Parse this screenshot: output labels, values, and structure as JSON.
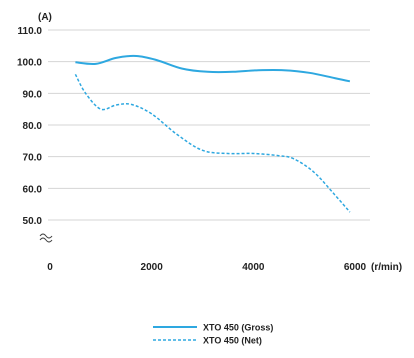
{
  "chart_data": {
    "type": "line",
    "title": "",
    "ylabel": "(A)",
    "xlabel": "(r/min)",
    "xlim": [
      0,
      6000
    ],
    "ylim": [
      50,
      110
    ],
    "axis_break": true,
    "grid": "horizontal",
    "y_ticks": [
      "110.0",
      "100.0",
      "90.0",
      "80.0",
      "70.0",
      "60.0",
      "50.0"
    ],
    "y_tick_values": [
      110,
      100,
      90,
      80,
      70,
      60,
      50
    ],
    "x_ticks": [
      "0",
      "2000",
      "4000",
      "6000"
    ],
    "x_tick_values": [
      0,
      2000,
      4000,
      6000
    ],
    "legend_position": "bottom-center",
    "series": [
      {
        "name": "XTO 450 (Gross)",
        "color": "#2ea8e0",
        "style": "solid",
        "x": [
          500,
          900,
          1300,
          1700,
          2100,
          2600,
          3100,
          3600,
          4100,
          4600,
          5100,
          5600,
          5900
        ],
        "y": [
          99.8,
          99.3,
          101.2,
          101.8,
          100.5,
          97.8,
          96.8,
          96.8,
          97.3,
          97.3,
          96.5,
          94.8,
          93.8
        ]
      },
      {
        "name": "XTO 450 (Net)",
        "color": "#2ea8e0",
        "style": "dashed",
        "x": [
          500,
          700,
          1000,
          1300,
          1600,
          2000,
          2500,
          3000,
          3500,
          4000,
          4500,
          4800,
          5200,
          5600,
          5900
        ],
        "y": [
          96,
          90,
          85,
          86.3,
          86.5,
          83.5,
          77,
          72,
          71,
          71,
          70.3,
          69.3,
          65,
          58,
          52.5
        ]
      }
    ]
  }
}
